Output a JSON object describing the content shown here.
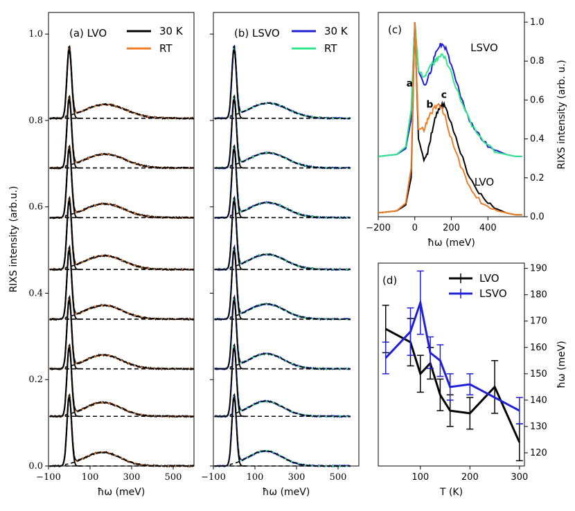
{
  "chart_data": [
    {
      "panel": "a",
      "type": "line",
      "label": "(a) LVO",
      "xlabel": "ħω (meV)",
      "ylabel": "RIXS intensity (arb.u.)",
      "xlim": [
        -100,
        600
      ],
      "ylim": [
        0,
        1.05
      ],
      "xticks": [
        "−100",
        "100",
        "300",
        "500"
      ],
      "xtick_values": [
        -100,
        100,
        300,
        500
      ],
      "yticks": [
        "0.0",
        "0.2",
        "0.4",
        "0.6",
        "0.8",
        "1.0"
      ],
      "ytick_values": [
        0,
        0.2,
        0.4,
        0.6,
        0.8,
        1.0
      ],
      "stack_offsets": [
        0,
        0.115,
        0.225,
        0.34,
        0.455,
        0.575,
        0.69,
        0.805
      ],
      "elastic": {
        "center": 0,
        "peak": 0.16,
        "width": 11
      },
      "magnon": {
        "center": 160,
        "height": 0.032,
        "width": 85
      },
      "series": [
        {
          "name": "30 K",
          "color": "#000000"
        },
        {
          "name": "RT",
          "color": "#f07d24"
        }
      ],
      "fit_style": "dashed black"
    },
    {
      "panel": "b",
      "type": "line",
      "label": "(b) LSVO",
      "xlabel": "ħω (meV)",
      "xlim": [
        -100,
        600
      ],
      "ylim": [
        0,
        1.05
      ],
      "xticks": [
        "−100",
        "100",
        "300",
        "500"
      ],
      "xtick_values": [
        -100,
        100,
        300,
        500
      ],
      "stack_offsets": [
        0,
        0.115,
        0.225,
        0.34,
        0.455,
        0.575,
        0.69,
        0.805
      ],
      "elastic": {
        "center": 0,
        "peak": 0.16,
        "width": 11
      },
      "magnon": {
        "center": 150,
        "height": 0.035,
        "width": 80
      },
      "series": [
        {
          "name": "30 K",
          "color": "#1f1fd6"
        },
        {
          "name": "RT",
          "color": "#2ee88a"
        }
      ],
      "fit_style": "dashed black"
    },
    {
      "panel": "c",
      "type": "line",
      "label": "(c)",
      "xlabel": "ħω (meV)",
      "ylabel": "RIXS intensity (arb. u.)",
      "xlim": [
        -200,
        600
      ],
      "ylim": [
        0,
        1.05
      ],
      "xticks": [
        "−200",
        "0",
        "200",
        "400"
      ],
      "xtick_values": [
        -200,
        0,
        200,
        400
      ],
      "yticks": [
        "0.0",
        "0.2",
        "0.4",
        "0.6",
        "0.8",
        "1.0"
      ],
      "ytick_values": [
        0,
        0.2,
        0.4,
        0.6,
        0.8,
        1.0
      ],
      "annotations": [
        "LSVO",
        "LVO",
        "a",
        "b",
        "c"
      ],
      "series": [
        {
          "name": "LVO 30 K",
          "color": "#000000",
          "baseline": 0.0,
          "points": [
            [
              -200,
              0.02
            ],
            [
              -100,
              0.03
            ],
            [
              -50,
              0.06
            ],
            [
              -20,
              0.2
            ],
            [
              0,
              1.0
            ],
            [
              20,
              0.4
            ],
            [
              50,
              0.3
            ],
            [
              70,
              0.33
            ],
            [
              90,
              0.42
            ],
            [
              110,
              0.5
            ],
            [
              130,
              0.55
            ],
            [
              150,
              0.58
            ],
            [
              170,
              0.56
            ],
            [
              200,
              0.48
            ],
            [
              250,
              0.33
            ],
            [
              300,
              0.2
            ],
            [
              350,
              0.12
            ],
            [
              400,
              0.07
            ],
            [
              450,
              0.04
            ],
            [
              500,
              0.02
            ],
            [
              550,
              0.01
            ],
            [
              600,
              0.01
            ]
          ]
        },
        {
          "name": "LVO RT",
          "color": "#f07d24",
          "baseline": 0.0,
          "points": [
            [
              -200,
              0.02
            ],
            [
              -100,
              0.03
            ],
            [
              -50,
              0.07
            ],
            [
              -20,
              0.25
            ],
            [
              0,
              1.0
            ],
            [
              20,
              0.45
            ],
            [
              50,
              0.45
            ],
            [
              70,
              0.5
            ],
            [
              90,
              0.53
            ],
            [
              110,
              0.56
            ],
            [
              130,
              0.57
            ],
            [
              150,
              0.55
            ],
            [
              170,
              0.5
            ],
            [
              200,
              0.4
            ],
            [
              250,
              0.26
            ],
            [
              300,
              0.15
            ],
            [
              350,
              0.09
            ],
            [
              400,
              0.05
            ],
            [
              450,
              0.03
            ],
            [
              500,
              0.02
            ],
            [
              550,
              0.01
            ],
            [
              600,
              0.01
            ]
          ]
        },
        {
          "name": "LSVO 30 K",
          "color": "#1f1fd6",
          "baseline": 0.31,
          "points": [
            [
              -200,
              0.31
            ],
            [
              -100,
              0.32
            ],
            [
              -50,
              0.35
            ],
            [
              -20,
              0.5
            ],
            [
              0,
              1.0
            ],
            [
              20,
              0.75
            ],
            [
              50,
              0.68
            ],
            [
              70,
              0.7
            ],
            [
              90,
              0.76
            ],
            [
              110,
              0.83
            ],
            [
              130,
              0.87
            ],
            [
              150,
              0.89
            ],
            [
              170,
              0.86
            ],
            [
              200,
              0.78
            ],
            [
              250,
              0.62
            ],
            [
              300,
              0.5
            ],
            [
              350,
              0.42
            ],
            [
              400,
              0.37
            ],
            [
              450,
              0.34
            ],
            [
              500,
              0.32
            ],
            [
              550,
              0.31
            ],
            [
              600,
              0.31
            ]
          ]
        },
        {
          "name": "LSVO RT",
          "color": "#2ee88a",
          "baseline": 0.31,
          "points": [
            [
              -200,
              0.31
            ],
            [
              -100,
              0.32
            ],
            [
              -50,
              0.36
            ],
            [
              -20,
              0.55
            ],
            [
              0,
              1.0
            ],
            [
              20,
              0.75
            ],
            [
              50,
              0.72
            ],
            [
              70,
              0.74
            ],
            [
              90,
              0.78
            ],
            [
              110,
              0.8
            ],
            [
              130,
              0.82
            ],
            [
              150,
              0.83
            ],
            [
              170,
              0.81
            ],
            [
              200,
              0.74
            ],
            [
              250,
              0.6
            ],
            [
              300,
              0.49
            ],
            [
              350,
              0.41
            ],
            [
              400,
              0.36
            ],
            [
              450,
              0.33
            ],
            [
              500,
              0.32
            ],
            [
              550,
              0.31
            ],
            [
              600,
              0.31
            ]
          ]
        }
      ]
    },
    {
      "panel": "d",
      "type": "line",
      "label": "(d)",
      "xlabel": "T (K)",
      "ylabel": "ħω (meV)",
      "xlim": [
        15,
        310
      ],
      "ylim": [
        115,
        192
      ],
      "xticks": [
        "100",
        "200",
        "300"
      ],
      "xtick_values": [
        100,
        200,
        300
      ],
      "yticks": [
        "120",
        "130",
        "140",
        "150",
        "160",
        "170",
        "180",
        "190"
      ],
      "ytick_values": [
        120,
        130,
        140,
        150,
        160,
        170,
        180,
        190
      ],
      "series": [
        {
          "name": "LVO",
          "color": "#000000",
          "x": [
            30,
            80,
            100,
            120,
            140,
            160,
            200,
            250,
            300
          ],
          "y": [
            167,
            162,
            150,
            154,
            142,
            136,
            135,
            145,
            124
          ],
          "err": [
            9,
            9,
            7,
            6,
            6,
            6,
            6,
            10,
            7
          ]
        },
        {
          "name": "LSVO",
          "color": "#1f1fd6",
          "x": [
            30,
            80,
            100,
            120,
            140,
            160,
            200,
            300
          ],
          "y": [
            156,
            166,
            177,
            158,
            155,
            145,
            146,
            136
          ],
          "err": [
            6,
            9,
            12,
            6,
            6,
            5,
            4,
            5
          ]
        }
      ]
    }
  ]
}
